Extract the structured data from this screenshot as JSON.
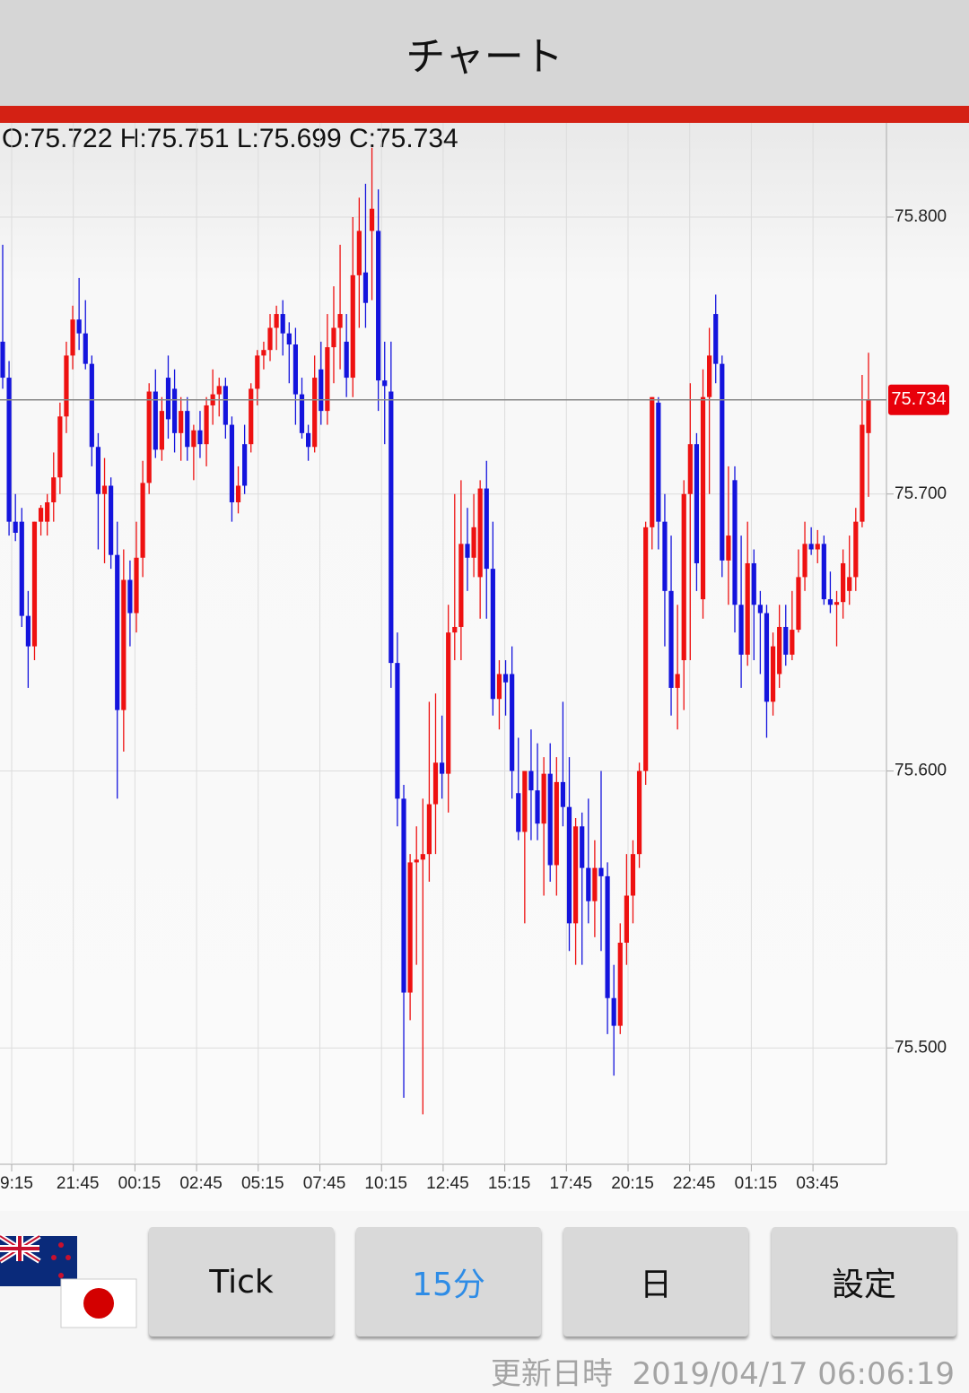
{
  "header": {
    "title": "チャート"
  },
  "chart_data": {
    "type": "candlestick",
    "ohlc_text": "O:75.722 H:75.751 L:75.699 C:75.734",
    "up_color": "#ee1111",
    "down_color": "#1414dd",
    "ylim": [
      75.458,
      75.834
    ],
    "yticks": [
      {
        "value": 75.8,
        "label": "75.800"
      },
      {
        "value": 75.7,
        "label": "75.700"
      },
      {
        "value": 75.6,
        "label": "75.600"
      },
      {
        "value": 75.5,
        "label": "75.500"
      }
    ],
    "xtick_labels": [
      "9:15",
      "21:45",
      "00:15",
      "02:45",
      "05:15",
      "07:45",
      "10:15",
      "12:45",
      "15:15",
      "17:45",
      "20:15",
      "22:45",
      "01:15",
      "03:45"
    ],
    "current": {
      "value": 75.734,
      "label": "75.734"
    },
    "ohlc": [
      [
        75.755,
        75.79,
        75.738,
        75.742
      ],
      [
        75.742,
        75.748,
        75.685,
        75.69
      ],
      [
        75.69,
        75.7,
        75.683,
        75.686
      ],
      [
        75.69,
        75.695,
        75.652,
        75.656
      ],
      [
        75.656,
        75.665,
        75.63,
        75.645
      ],
      [
        75.645,
        75.69,
        75.64,
        75.69
      ],
      [
        75.69,
        75.696,
        75.685,
        75.695
      ],
      [
        75.69,
        75.7,
        75.685,
        75.697
      ],
      [
        75.697,
        75.715,
        75.69,
        75.706
      ],
      [
        75.706,
        75.733,
        75.7,
        75.728
      ],
      [
        75.728,
        75.755,
        75.722,
        75.75
      ],
      [
        75.75,
        75.768,
        75.745,
        75.763
      ],
      [
        75.763,
        75.778,
        75.752,
        75.758
      ],
      [
        75.758,
        75.77,
        75.745,
        75.747
      ],
      [
        75.747,
        75.75,
        75.71,
        75.717
      ],
      [
        75.717,
        75.722,
        75.68,
        75.7
      ],
      [
        75.7,
        75.713,
        75.675,
        75.703
      ],
      [
        75.703,
        75.706,
        75.673,
        75.678
      ],
      [
        75.678,
        75.69,
        75.59,
        75.622
      ],
      [
        75.622,
        75.68,
        75.607,
        75.669
      ],
      [
        75.669,
        75.676,
        75.645,
        75.657
      ],
      [
        75.657,
        75.69,
        75.65,
        75.677
      ],
      [
        75.677,
        75.712,
        75.67,
        75.704
      ],
      [
        75.704,
        75.74,
        75.7,
        75.737
      ],
      [
        75.737,
        75.745,
        75.713,
        75.716
      ],
      [
        75.716,
        75.735,
        75.712,
        75.73
      ],
      [
        75.742,
        75.75,
        75.72,
        75.727
      ],
      [
        75.738,
        75.745,
        75.715,
        75.722
      ],
      [
        75.722,
        75.735,
        75.712,
        75.73
      ],
      [
        75.73,
        75.735,
        75.712,
        75.717
      ],
      [
        75.717,
        75.725,
        75.705,
        75.723
      ],
      [
        75.723,
        75.73,
        75.713,
        75.718
      ],
      [
        75.718,
        75.735,
        75.71,
        75.732
      ],
      [
        75.732,
        75.745,
        75.725,
        75.736
      ],
      [
        75.736,
        75.742,
        75.728,
        75.739
      ],
      [
        75.739,
        75.742,
        75.72,
        75.725
      ],
      [
        75.725,
        75.728,
        75.69,
        75.697
      ],
      [
        75.697,
        75.71,
        75.693,
        75.703
      ],
      [
        75.718,
        75.725,
        75.7,
        75.703
      ],
      [
        75.718,
        75.74,
        75.715,
        75.738
      ],
      [
        75.738,
        75.752,
        75.732,
        75.75
      ],
      [
        75.75,
        75.755,
        75.745,
        75.752
      ],
      [
        75.752,
        75.765,
        75.748,
        75.76
      ],
      [
        75.76,
        75.768,
        75.752,
        75.765
      ],
      [
        75.765,
        75.77,
        75.75,
        75.758
      ],
      [
        75.758,
        75.762,
        75.74,
        75.754
      ],
      [
        75.754,
        75.76,
        75.725,
        75.736
      ],
      [
        75.736,
        75.742,
        75.72,
        75.722
      ],
      [
        75.722,
        75.725,
        75.712,
        75.717
      ],
      [
        75.717,
        75.75,
        75.715,
        75.742
      ],
      [
        75.745,
        75.755,
        75.725,
        75.73
      ],
      [
        75.73,
        75.765,
        75.725,
        75.753
      ],
      [
        75.753,
        75.775,
        75.74,
        75.76
      ],
      [
        75.76,
        75.79,
        75.745,
        75.765
      ],
      [
        75.755,
        75.765,
        75.735,
        75.742
      ],
      [
        75.742,
        75.8,
        75.735,
        75.779
      ],
      [
        75.779,
        75.807,
        75.76,
        75.795
      ],
      [
        75.78,
        75.812,
        75.76,
        75.769
      ],
      [
        75.795,
        75.825,
        75.77,
        75.803
      ],
      [
        75.795,
        75.81,
        75.73,
        75.741
      ],
      [
        75.741,
        75.755,
        75.718,
        75.739
      ],
      [
        75.737,
        75.755,
        75.63,
        75.639
      ],
      [
        75.639,
        75.65,
        75.58,
        75.59
      ],
      [
        75.59,
        75.595,
        75.482,
        75.52
      ],
      [
        75.52,
        75.57,
        75.51,
        75.567
      ],
      [
        75.567,
        75.58,
        75.53,
        75.568
      ],
      [
        75.568,
        75.59,
        75.476,
        75.57
      ],
      [
        75.57,
        75.625,
        75.56,
        75.588
      ],
      [
        75.588,
        75.628,
        75.57,
        75.603
      ],
      [
        75.603,
        75.62,
        75.59,
        75.599
      ],
      [
        75.599,
        75.66,
        75.585,
        75.65
      ],
      [
        75.65,
        75.7,
        75.64,
        75.652
      ],
      [
        75.652,
        75.705,
        75.64,
        75.682
      ],
      [
        75.682,
        75.695,
        75.665,
        75.677
      ],
      [
        75.677,
        75.7,
        75.67,
        75.688
      ],
      [
        75.67,
        75.705,
        75.655,
        75.702
      ],
      [
        75.702,
        75.712,
        75.655,
        75.673
      ],
      [
        75.673,
        75.69,
        75.62,
        75.626
      ],
      [
        75.626,
        75.64,
        75.615,
        75.635
      ],
      [
        75.635,
        75.64,
        75.62,
        75.632
      ],
      [
        75.635,
        75.645,
        75.59,
        75.6
      ],
      [
        75.592,
        75.612,
        75.575,
        75.578
      ],
      [
        75.578,
        75.6,
        75.545,
        75.6
      ],
      [
        75.6,
        75.615,
        75.575,
        75.593
      ],
      [
        75.593,
        75.61,
        75.575,
        75.581
      ],
      [
        75.581,
        75.605,
        75.555,
        75.599
      ],
      [
        75.599,
        75.61,
        75.56,
        75.566
      ],
      [
        75.566,
        75.605,
        75.555,
        75.596
      ],
      [
        75.596,
        75.625,
        75.58,
        75.587
      ],
      [
        75.587,
        75.605,
        75.535,
        75.545
      ],
      [
        75.545,
        75.583,
        75.53,
        75.58
      ],
      [
        75.58,
        75.585,
        75.53,
        75.565
      ],
      [
        75.565,
        75.59,
        75.545,
        75.553
      ],
      [
        75.553,
        75.575,
        75.54,
        75.565
      ],
      [
        75.565,
        75.6,
        75.535,
        75.562
      ],
      [
        75.562,
        75.567,
        75.505,
        75.518
      ],
      [
        75.518,
        75.53,
        75.49,
        75.508
      ],
      [
        75.508,
        75.545,
        75.505,
        75.538
      ],
      [
        75.538,
        75.57,
        75.53,
        75.555
      ],
      [
        75.555,
        75.575,
        75.545,
        75.57
      ],
      [
        75.57,
        75.603,
        75.565,
        75.6
      ],
      [
        75.6,
        75.69,
        75.595,
        75.688
      ],
      [
        75.688,
        75.735,
        75.68,
        75.735
      ],
      [
        75.733,
        75.735,
        75.68,
        75.69
      ],
      [
        75.69,
        75.7,
        75.645,
        75.665
      ],
      [
        75.665,
        75.685,
        75.62,
        75.63
      ],
      [
        75.63,
        75.66,
        75.615,
        75.635
      ],
      [
        75.64,
        75.705,
        75.622,
        75.7
      ],
      [
        75.7,
        75.74,
        75.64,
        75.718
      ],
      [
        75.718,
        75.722,
        75.665,
        75.675
      ],
      [
        75.662,
        75.745,
        75.655,
        75.735
      ],
      [
        75.735,
        75.76,
        75.7,
        75.75
      ],
      [
        75.765,
        75.772,
        75.74,
        75.747
      ],
      [
        75.747,
        75.75,
        75.67,
        75.676
      ],
      [
        75.676,
        75.71,
        75.66,
        75.685
      ],
      [
        75.705,
        75.71,
        75.65,
        75.66
      ],
      [
        75.66,
        75.685,
        75.63,
        75.642
      ],
      [
        75.642,
        75.69,
        75.638,
        75.675
      ],
      [
        75.675,
        75.68,
        75.64,
        75.66
      ],
      [
        75.66,
        75.665,
        75.635,
        75.657
      ],
      [
        75.657,
        75.66,
        75.612,
        75.625
      ],
      [
        75.625,
        75.65,
        75.62,
        75.645
      ],
      [
        75.635,
        75.66,
        75.63,
        75.652
      ],
      [
        75.652,
        75.66,
        75.638,
        75.642
      ],
      [
        75.642,
        75.665,
        75.64,
        75.651
      ],
      [
        75.651,
        75.68,
        75.65,
        75.67
      ],
      [
        75.67,
        75.69,
        75.665,
        75.682
      ],
      [
        75.682,
        75.688,
        75.678,
        75.68
      ],
      [
        75.68,
        75.687,
        75.675,
        75.682
      ],
      [
        75.682,
        75.685,
        75.66,
        75.662
      ],
      [
        75.662,
        75.672,
        75.657,
        75.66
      ],
      [
        75.66,
        75.665,
        75.645,
        75.661
      ],
      [
        75.661,
        75.68,
        75.655,
        75.675
      ],
      [
        75.665,
        75.685,
        75.66,
        75.67
      ],
      [
        75.67,
        75.695,
        75.665,
        75.69
      ],
      [
        75.69,
        75.743,
        75.688,
        75.725
      ],
      [
        75.722,
        75.751,
        75.699,
        75.734
      ]
    ]
  },
  "buttons": [
    {
      "label": "Tick"
    },
    {
      "label": "15分"
    },
    {
      "label": "日"
    },
    {
      "label": "設定"
    }
  ],
  "footer": {
    "label": "更新日時",
    "timestamp": "2019/04/17 06:06:19"
  }
}
